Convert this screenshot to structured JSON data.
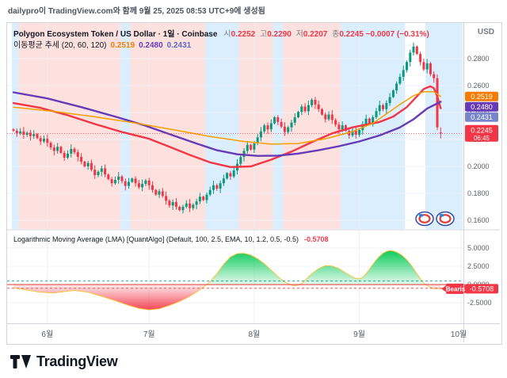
{
  "watermark": "dailypro이 TradingView.com와 함께 9월 25, 2025 08:53 UTC+9에 생성됨",
  "header": {
    "symbol_full": "Polygon Ecosystem Token / US Dollar · 1일 · Coinbase",
    "ohlc": {
      "open_label": "시",
      "open": "0.2252",
      "high_label": "고",
      "high": "0.2290",
      "low_label": "저",
      "low": "0.2207",
      "close_label": "종",
      "close": "0.2245",
      "change": "−0.0007 (−0.31%)",
      "color": "#f23645"
    },
    "ma_legend": {
      "name": "이동평균 추세 (20, 60, 120)",
      "values": [
        {
          "text": "0.2519",
          "color": "#f57c00"
        },
        {
          "text": "0.2480",
          "color": "#673ab7"
        },
        {
          "text": "0.2431",
          "color": "#5c6bc0"
        }
      ]
    }
  },
  "price_scale": {
    "currency": "USD",
    "badges": [
      {
        "text": "0.2519",
        "bg": "#f57c00"
      },
      {
        "text": "0.2480",
        "bg": "#673ab7"
      },
      {
        "text": "0.2431",
        "bg": "#7986cb"
      },
      {
        "text": "0.2245",
        "sub": "06:45",
        "bg": "#f23645"
      }
    ]
  },
  "indicator_pane": {
    "legend": "Logarithmic Moving Average (LMA) [QuantAlgo] (Default, 100, 2.5, EMA, 10, 1.2, 0.5, -0.5)",
    "value": "-0.5708",
    "value_color": "#f23645",
    "badge": {
      "text": "-0.5708",
      "bg": "#f23645"
    },
    "signal_label": {
      "text": "Bearis",
      "bg": "#f23645"
    }
  },
  "time_axis": {
    "labels": [
      "6월",
      "7월",
      "8월",
      "9월",
      "10월"
    ]
  },
  "footer": {
    "brand": "TradingView"
  },
  "chart_data": [
    {
      "type": "candlestick",
      "title": "Polygon Ecosystem Token / US Dollar, 1D, Coinbase",
      "ylim": [
        0.1535,
        0.3065
      ],
      "yticks": [
        0.28,
        0.26,
        0.24,
        0.22,
        0.2,
        0.18,
        0.16
      ],
      "up_color": "#089981",
      "down_color": "#f23645",
      "first_open": 0.2275,
      "last": {
        "open": 0.2252,
        "high": 0.229,
        "low": 0.2207,
        "close": 0.2245
      },
      "last_price": 0.2245,
      "closes": [
        0.2265,
        0.2245,
        0.226,
        0.2235,
        0.225,
        0.2225,
        0.224,
        0.221,
        0.2185,
        0.2205,
        0.2175,
        0.214,
        0.2115,
        0.2145,
        0.21,
        0.2065,
        0.2095,
        0.213,
        0.2105,
        0.207,
        0.2035,
        0.2,
        0.2025,
        0.1975,
        0.1935,
        0.196,
        0.1985,
        0.194,
        0.1905,
        0.1875,
        0.19,
        0.1925,
        0.189,
        0.1855,
        0.1885,
        0.191,
        0.1875,
        0.1845,
        0.187,
        0.1895,
        0.186,
        0.1825,
        0.179,
        0.1815,
        0.178,
        0.1745,
        0.171,
        0.1735,
        0.17,
        0.1675,
        0.17,
        0.1725,
        0.169,
        0.1715,
        0.174,
        0.1775,
        0.175,
        0.179,
        0.1825,
        0.186,
        0.1835,
        0.1875,
        0.191,
        0.195,
        0.1925,
        0.197,
        0.202,
        0.207,
        0.2115,
        0.216,
        0.2125,
        0.217,
        0.2215,
        0.226,
        0.2305,
        0.2275,
        0.232,
        0.2365,
        0.233,
        0.2295,
        0.2255,
        0.229,
        0.2325,
        0.2365,
        0.2405,
        0.2445,
        0.241,
        0.2455,
        0.2495,
        0.246,
        0.2425,
        0.2385,
        0.235,
        0.2385,
        0.2345,
        0.231,
        0.2275,
        0.2305,
        0.2265,
        0.223,
        0.2265,
        0.2235,
        0.227,
        0.2315,
        0.2355,
        0.232,
        0.2365,
        0.241,
        0.2455,
        0.2425,
        0.247,
        0.2515,
        0.2565,
        0.2615,
        0.2665,
        0.2715,
        0.2775,
        0.2845,
        0.289,
        0.2835,
        0.2775,
        0.272,
        0.2765,
        0.2685,
        0.2655,
        0.229,
        0.2245
      ],
      "month_ticks": [
        {
          "i": 10,
          "label": "6월"
        },
        {
          "i": 40,
          "label": "7월"
        },
        {
          "i": 71,
          "label": "8월"
        },
        {
          "i": 102,
          "label": "9월"
        },
        {
          "i": 132,
          "label": "10월"
        }
      ],
      "ma_series": [
        {
          "name": "MA20",
          "color": "#f23645",
          "width": 2.4,
          "points": [
            [
              0,
              0.247
            ],
            [
              8,
              0.2435
            ],
            [
              16,
              0.238
            ],
            [
              24,
              0.2315
            ],
            [
              32,
              0.2255
            ],
            [
              40,
              0.2205
            ],
            [
              46,
              0.2145
            ],
            [
              52,
              0.2085
            ],
            [
              58,
              0.203
            ],
            [
              64,
              0.1995
            ],
            [
              70,
              0.2
            ],
            [
              76,
              0.205
            ],
            [
              82,
              0.211
            ],
            [
              88,
              0.218
            ],
            [
              94,
              0.2245
            ],
            [
              100,
              0.229
            ],
            [
              104,
              0.231
            ],
            [
              108,
              0.233
            ],
            [
              112,
              0.237
            ],
            [
              116,
              0.244
            ],
            [
              119,
              0.252
            ],
            [
              121,
              0.2575
            ],
            [
              123,
              0.2595
            ],
            [
              124,
              0.258
            ],
            [
              125,
              0.252
            ],
            [
              126,
              0.2431
            ]
          ]
        },
        {
          "name": "MA60",
          "color": "#673ab7",
          "width": 2.4,
          "points": [
            [
              0,
              0.255
            ],
            [
              10,
              0.2505
            ],
            [
              20,
              0.244
            ],
            [
              30,
              0.237
            ],
            [
              38,
              0.231
            ],
            [
              46,
              0.224
            ],
            [
              54,
              0.217
            ],
            [
              60,
              0.212
            ],
            [
              66,
              0.209
            ],
            [
              72,
              0.2078
            ],
            [
              78,
              0.208
            ],
            [
              84,
              0.2095
            ],
            [
              90,
              0.212
            ],
            [
              96,
              0.215
            ],
            [
              102,
              0.2185
            ],
            [
              108,
              0.223
            ],
            [
              114,
              0.229
            ],
            [
              118,
              0.235
            ],
            [
              122,
              0.243
            ],
            [
              126,
              0.248
            ]
          ]
        },
        {
          "name": "MA120",
          "color": "#f59f00",
          "width": 1.5,
          "points": [
            [
              0,
              0.244
            ],
            [
              12,
              0.2408
            ],
            [
              24,
              0.2368
            ],
            [
              36,
              0.2322
            ],
            [
              48,
              0.2268
            ],
            [
              58,
              0.2222
            ],
            [
              68,
              0.2185
            ],
            [
              76,
              0.2165
            ],
            [
              84,
              0.217
            ],
            [
              92,
              0.2205
            ],
            [
              100,
              0.2258
            ],
            [
              106,
              0.232
            ],
            [
              110,
              0.239
            ],
            [
              114,
              0.246
            ],
            [
              118,
              0.2525
            ],
            [
              121,
              0.2555
            ],
            [
              124,
              0.2555
            ],
            [
              126,
              0.2519
            ]
          ]
        }
      ],
      "band_colors": {
        "pink": "rgba(244,67,54,0.16)",
        "blue": "rgba(33,150,243,0.16)"
      },
      "bands": [
        {
          "from": 0,
          "to": 2,
          "c": "blue"
        },
        {
          "from": 2,
          "to": 32,
          "c": "pink"
        },
        {
          "from": 32,
          "to": 35,
          "c": "blue"
        },
        {
          "from": 35,
          "to": 57,
          "c": "pink"
        },
        {
          "from": 57,
          "to": 67,
          "c": "blue"
        },
        {
          "from": 67,
          "to": 77,
          "c": "pink"
        },
        {
          "from": 77,
          "to": 80,
          "c": "blue"
        },
        {
          "from": 80,
          "to": 97,
          "c": "pink"
        },
        {
          "from": 97,
          "to": 116,
          "c": "blue"
        },
        {
          "from": 122,
          "to": 133,
          "c": "blue"
        }
      ]
    },
    {
      "type": "area",
      "name": "Logarithmic Moving Average (LMA) oscillator",
      "ylim": [
        -5.3,
        7.4
      ],
      "yticks": [
        5,
        2.5,
        0,
        -2.5
      ],
      "thresholds": [
        0.5,
        -0.5
      ],
      "last": -0.5708,
      "points": [
        [
          0,
          -0.4
        ],
        [
          4,
          -0.75
        ],
        [
          8,
          -1.05
        ],
        [
          12,
          -1.15
        ],
        [
          15,
          -0.95
        ],
        [
          18,
          -0.8
        ],
        [
          22,
          -1.05
        ],
        [
          26,
          -1.6
        ],
        [
          30,
          -2.2
        ],
        [
          34,
          -2.85
        ],
        [
          37,
          -3.25
        ],
        [
          40,
          -3.45
        ],
        [
          43,
          -3.3
        ],
        [
          46,
          -2.85
        ],
        [
          49,
          -2.3
        ],
        [
          52,
          -1.6
        ],
        [
          54,
          -1.0
        ],
        [
          56,
          -0.35
        ],
        [
          58,
          0.4
        ],
        [
          60,
          1.5
        ],
        [
          62,
          2.8
        ],
        [
          64,
          3.8
        ],
        [
          66,
          4.25
        ],
        [
          68,
          4.3
        ],
        [
          70,
          4.05
        ],
        [
          72,
          3.55
        ],
        [
          74,
          2.85
        ],
        [
          76,
          2.0
        ],
        [
          78,
          1.1
        ],
        [
          80,
          0.35
        ],
        [
          82,
          -0.05
        ],
        [
          83,
          -0.15
        ],
        [
          84,
          -0.05
        ],
        [
          85,
          0.15
        ],
        [
          86,
          0.6
        ],
        [
          88,
          1.5
        ],
        [
          90,
          2.2
        ],
        [
          92,
          2.6
        ],
        [
          94,
          2.55
        ],
        [
          96,
          2.2
        ],
        [
          98,
          1.6
        ],
        [
          100,
          1.05
        ],
        [
          101,
          0.85
        ],
        [
          102,
          0.8
        ],
        [
          103,
          1.0
        ],
        [
          104,
          1.5
        ],
        [
          105,
          2.1
        ],
        [
          106,
          2.8
        ],
        [
          107,
          3.4
        ],
        [
          108,
          3.9
        ],
        [
          109,
          4.3
        ],
        [
          110,
          4.55
        ],
        [
          111,
          4.65
        ],
        [
          112,
          4.6
        ],
        [
          113,
          4.45
        ],
        [
          114,
          4.2
        ],
        [
          115,
          3.85
        ],
        [
          116,
          3.4
        ],
        [
          117,
          2.85
        ],
        [
          118,
          2.2
        ],
        [
          119,
          1.5
        ],
        [
          120,
          0.8
        ],
        [
          121,
          0.25
        ],
        [
          122,
          -0.15
        ],
        [
          123,
          -0.4
        ],
        [
          124,
          -0.52
        ],
        [
          125,
          -0.56
        ],
        [
          126,
          -0.5708
        ]
      ]
    }
  ]
}
